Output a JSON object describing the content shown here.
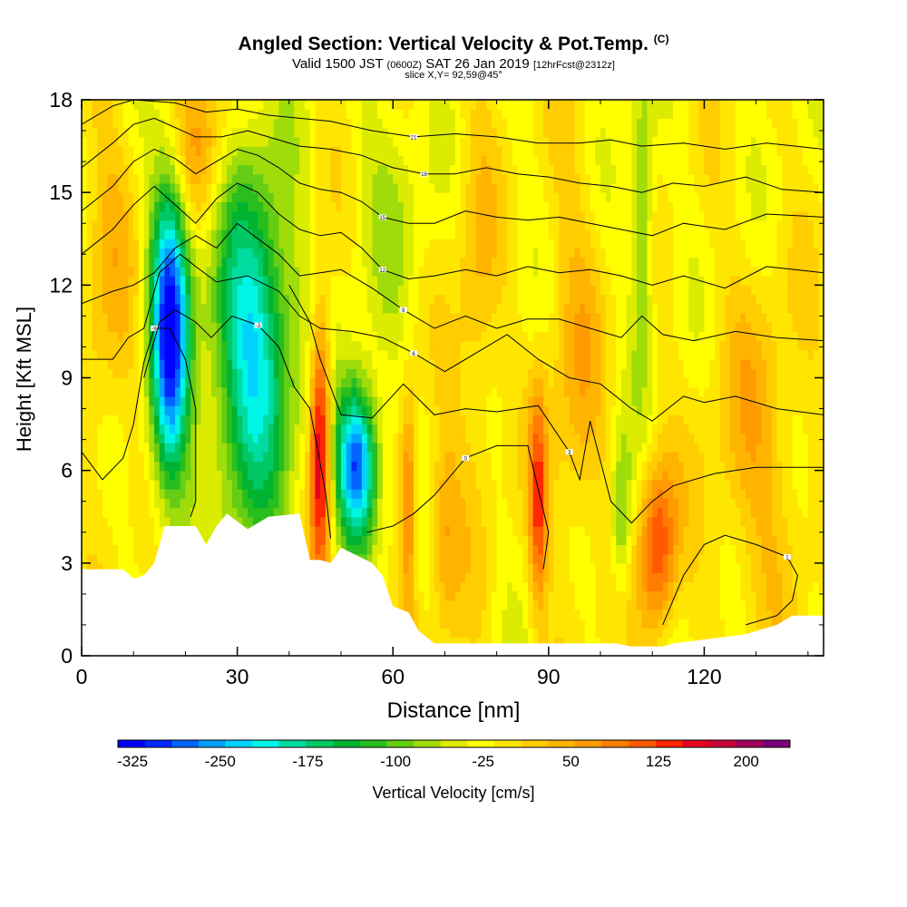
{
  "title": {
    "main": "Angled Section: Vertical Velocity & Pot.Temp.",
    "mark": "(C)",
    "valid_prefix": "Valid 1500 JST",
    "valid_utc": "(0600Z)",
    "valid_date": "SAT 26 Jan 2019",
    "forecast": "[12hrFcst@2312z]",
    "slice": "slice X,Y= 92,59@45°"
  },
  "chart_data": {
    "type": "heatmap",
    "xlabel": "Distance [nm]",
    "ylabel": "Height [Kft MSL]",
    "xlim": [
      0,
      143
    ],
    "ylim": [
      0,
      18
    ],
    "x_ticks": [
      0,
      30,
      60,
      90,
      120
    ],
    "y_ticks": [
      0,
      3,
      6,
      9,
      12,
      15,
      18
    ],
    "colorbar": {
      "label": "Vertical Velocity [cm/s]",
      "min": -337.5,
      "max": 237.5,
      "step": 25,
      "tick_values": [
        -325,
        -250,
        -175,
        -100,
        -25,
        50,
        125,
        200
      ],
      "colors": [
        "#0000ff",
        "#0028ff",
        "#0064ff",
        "#00a0ff",
        "#00d2ff",
        "#00f5e6",
        "#00dca0",
        "#00c864",
        "#00b432",
        "#28be1e",
        "#64cd14",
        "#a0dc0a",
        "#dcec00",
        "#ffff00",
        "#ffe600",
        "#ffcd00",
        "#ffb400",
        "#ff9b00",
        "#ff7d00",
        "#ff5a00",
        "#ff2800",
        "#e6001e",
        "#c8003c",
        "#a0005a",
        "#780078"
      ]
    },
    "terrain_kft": [
      [
        0,
        2.8
      ],
      [
        8,
        2.8
      ],
      [
        10,
        2.5
      ],
      [
        12,
        2.6
      ],
      [
        14,
        3.0
      ],
      [
        16,
        4.2
      ],
      [
        22,
        4.2
      ],
      [
        24,
        3.6
      ],
      [
        26,
        4.2
      ],
      [
        28,
        4.6
      ],
      [
        32,
        4.1
      ],
      [
        36,
        4.5
      ],
      [
        42,
        4.6
      ],
      [
        44,
        3.1
      ],
      [
        46,
        3.1
      ],
      [
        48,
        3.0
      ],
      [
        50,
        3.5
      ],
      [
        56,
        3.0
      ],
      [
        58,
        2.6
      ],
      [
        60,
        1.6
      ],
      [
        63,
        1.4
      ],
      [
        65,
        0.8
      ],
      [
        68,
        0.4
      ],
      [
        95,
        0.4
      ],
      [
        103,
        0.4
      ],
      [
        106,
        0.3
      ],
      [
        112,
        0.3
      ],
      [
        114,
        0.4
      ],
      [
        128,
        0.7
      ],
      [
        134,
        1.0
      ],
      [
        137,
        1.3
      ],
      [
        143,
        1.3
      ]
    ],
    "updrafts": [
      {
        "x": 17,
        "z": 10.5,
        "w": -330,
        "sx": 2.6,
        "sz": 3.5
      },
      {
        "x": 33,
        "z": 10.0,
        "w": -225,
        "sx": 5.5,
        "sz": 4.0
      },
      {
        "x": 53,
        "z": 6.2,
        "w": -310,
        "sx": 2.8,
        "sz": 1.8
      },
      {
        "x": 46,
        "z": 7.0,
        "w": 220,
        "sx": 1.4,
        "sz": 3.0
      },
      {
        "x": 63,
        "z": 5.0,
        "w": 130,
        "sx": 1.2,
        "sz": 2.5
      },
      {
        "x": 88,
        "z": 5.0,
        "w": 140,
        "sx": 1.2,
        "sz": 2.5
      },
      {
        "x": 111,
        "z": 3.5,
        "w": 155,
        "sx": 2.5,
        "sz": 2.0
      },
      {
        "x": 108,
        "z": 14.0,
        "w": -90,
        "sx": 1.6,
        "sz": 3.5
      },
      {
        "x": 60,
        "z": 14.5,
        "w": -40,
        "sx": 5.0,
        "sz": 3.5
      },
      {
        "x": 104,
        "z": 4.5,
        "w": -90,
        "sx": 1.4,
        "sz": 1.8
      },
      {
        "x": 95,
        "z": 9.0,
        "w": 60,
        "sx": 4.0,
        "sz": 5.0
      },
      {
        "x": 76,
        "z": 11.0,
        "w": 55,
        "sx": 3.0,
        "sz": 5.0
      },
      {
        "x": 130,
        "z": 6.5,
        "w": 60,
        "sx": 7.0,
        "sz": 4.0
      },
      {
        "x": 5,
        "z": 12.0,
        "w": 50,
        "sx": 4.0,
        "sz": 5.0
      },
      {
        "x": 23,
        "z": 16.5,
        "w": 80,
        "sx": 4.0,
        "sz": 2.0
      },
      {
        "x": 70,
        "z": 4.0,
        "w": 70,
        "sx": 2.0,
        "sz": 2.5
      }
    ],
    "isentropes": [
      {
        "label": "-9",
        "pts": [
          [
            0,
            6.6
          ],
          [
            4,
            5.7
          ],
          [
            8,
            6.4
          ],
          [
            10,
            7.5
          ],
          [
            12,
            9.5
          ],
          [
            14,
            10.6
          ],
          [
            17,
            10.6
          ],
          [
            20,
            9.6
          ],
          [
            22,
            8.0
          ],
          [
            22,
            5.0
          ],
          [
            21,
            4.5
          ]
        ]
      },
      {
        "label": "-3",
        "pts": [
          [
            12,
            9.0
          ],
          [
            15,
            10.8
          ],
          [
            18,
            11.2
          ],
          [
            22,
            10.8
          ],
          [
            25,
            10.3
          ],
          [
            29,
            11.0
          ],
          [
            34,
            10.7
          ],
          [
            38,
            10.0
          ],
          [
            41,
            8.7
          ],
          [
            44,
            8.0
          ],
          [
            47,
            5.3
          ],
          [
            48,
            3.8
          ]
        ]
      },
      {
        "label": "0",
        "pts": [
          [
            55,
            4.0
          ],
          [
            60,
            4.2
          ],
          [
            64,
            4.6
          ],
          [
            68,
            5.2
          ],
          [
            74,
            6.4
          ],
          [
            80,
            6.8
          ],
          [
            86,
            6.8
          ],
          [
            90,
            4.0
          ],
          [
            89,
            2.8
          ]
        ]
      },
      {
        "label": "3",
        "pts": [
          [
            40,
            12.0
          ],
          [
            44,
            10.8
          ],
          [
            46,
            9.6
          ],
          [
            50,
            7.8
          ],
          [
            56,
            7.7
          ],
          [
            62,
            8.8
          ],
          [
            68,
            7.8
          ],
          [
            74,
            8.0
          ],
          [
            80,
            7.9
          ],
          [
            88,
            8.1
          ],
          [
            94,
            6.6
          ],
          [
            96,
            5.7
          ],
          [
            98,
            7.6
          ],
          [
            102,
            5.0
          ],
          [
            106,
            4.3
          ],
          [
            110,
            5.0
          ],
          [
            114,
            5.5
          ],
          [
            122,
            5.9
          ],
          [
            130,
            6.1
          ],
          [
            143,
            6.1
          ]
        ]
      },
      {
        "label": "6",
        "pts": [
          [
            0,
            9.6
          ],
          [
            6,
            9.6
          ],
          [
            9,
            10.3
          ],
          [
            12,
            10.6
          ],
          [
            15,
            12.4
          ],
          [
            19,
            13.0
          ],
          [
            22,
            12.6
          ],
          [
            26,
            12.1
          ],
          [
            32,
            12.3
          ],
          [
            38,
            11.8
          ],
          [
            42,
            11.0
          ],
          [
            46,
            10.6
          ],
          [
            52,
            10.5
          ],
          [
            58,
            10.3
          ],
          [
            64,
            9.8
          ],
          [
            70,
            9.2
          ],
          [
            76,
            9.8
          ],
          [
            82,
            10.4
          ],
          [
            88,
            9.6
          ],
          [
            94,
            9.0
          ],
          [
            100,
            8.8
          ],
          [
            106,
            8.0
          ],
          [
            110,
            7.6
          ],
          [
            116,
            8.4
          ],
          [
            120,
            8.2
          ],
          [
            126,
            8.4
          ],
          [
            134,
            8.0
          ],
          [
            143,
            7.8
          ]
        ]
      },
      {
        "label": "9",
        "pts": [
          [
            0,
            11.4
          ],
          [
            6,
            11.8
          ],
          [
            10,
            12.0
          ],
          [
            14,
            12.4
          ],
          [
            18,
            13.2
          ],
          [
            22,
            13.6
          ],
          [
            26,
            13.2
          ],
          [
            30,
            14.0
          ],
          [
            34,
            13.5
          ],
          [
            38,
            13.0
          ],
          [
            42,
            12.3
          ],
          [
            46,
            12.4
          ],
          [
            50,
            12.5
          ],
          [
            56,
            11.9
          ],
          [
            62,
            11.2
          ],
          [
            68,
            10.6
          ],
          [
            74,
            11.0
          ],
          [
            80,
            10.6
          ],
          [
            86,
            10.9
          ],
          [
            92,
            10.9
          ],
          [
            98,
            10.6
          ],
          [
            104,
            10.3
          ],
          [
            108,
            11.0
          ],
          [
            112,
            10.4
          ],
          [
            118,
            10.2
          ],
          [
            126,
            10.5
          ],
          [
            134,
            10.3
          ],
          [
            143,
            10.2
          ]
        ]
      },
      {
        "label": "12",
        "pts": [
          [
            0,
            13.0
          ],
          [
            6,
            13.8
          ],
          [
            10,
            14.6
          ],
          [
            14,
            15.2
          ],
          [
            18,
            14.6
          ],
          [
            22,
            14.0
          ],
          [
            26,
            14.8
          ],
          [
            30,
            15.3
          ],
          [
            34,
            15.0
          ],
          [
            38,
            14.3
          ],
          [
            42,
            13.8
          ],
          [
            46,
            13.6
          ],
          [
            50,
            13.7
          ],
          [
            54,
            13.2
          ],
          [
            58,
            12.5
          ],
          [
            63,
            12.2
          ],
          [
            68,
            12.3
          ],
          [
            74,
            12.5
          ],
          [
            80,
            12.3
          ],
          [
            86,
            12.6
          ],
          [
            92,
            12.4
          ],
          [
            98,
            12.5
          ],
          [
            104,
            12.3
          ],
          [
            110,
            12.0
          ],
          [
            116,
            12.3
          ],
          [
            124,
            11.9
          ],
          [
            132,
            12.6
          ],
          [
            143,
            12.4
          ]
        ]
      },
      {
        "label": "15",
        "pts": [
          [
            0,
            14.4
          ],
          [
            6,
            15.2
          ],
          [
            10,
            16.0
          ],
          [
            14,
            16.4
          ],
          [
            18,
            16.1
          ],
          [
            22,
            15.6
          ],
          [
            26,
            16.0
          ],
          [
            30,
            16.4
          ],
          [
            34,
            16.2
          ],
          [
            38,
            15.8
          ],
          [
            42,
            15.3
          ],
          [
            46,
            15.1
          ],
          [
            50,
            15.0
          ],
          [
            54,
            14.7
          ],
          [
            58,
            14.2
          ],
          [
            63,
            14.0
          ],
          [
            68,
            14.0
          ],
          [
            74,
            14.4
          ],
          [
            80,
            14.2
          ],
          [
            86,
            14.1
          ],
          [
            92,
            14.2
          ],
          [
            98,
            14.0
          ],
          [
            104,
            13.8
          ],
          [
            110,
            13.6
          ],
          [
            116,
            14.0
          ],
          [
            124,
            13.8
          ],
          [
            132,
            14.3
          ],
          [
            143,
            14.2
          ]
        ]
      },
      {
        "label": "18",
        "pts": [
          [
            0,
            15.8
          ],
          [
            6,
            16.6
          ],
          [
            10,
            17.2
          ],
          [
            14,
            17.4
          ],
          [
            18,
            17.1
          ],
          [
            22,
            16.8
          ],
          [
            27,
            16.8
          ],
          [
            32,
            17.0
          ],
          [
            36,
            16.8
          ],
          [
            42,
            16.5
          ],
          [
            48,
            16.4
          ],
          [
            54,
            16.2
          ],
          [
            60,
            15.8
          ],
          [
            66,
            15.6
          ],
          [
            72,
            15.6
          ],
          [
            78,
            15.8
          ],
          [
            84,
            15.6
          ],
          [
            90,
            15.5
          ],
          [
            96,
            15.3
          ],
          [
            102,
            15.2
          ],
          [
            108,
            15.0
          ],
          [
            114,
            15.3
          ],
          [
            120,
            15.2
          ],
          [
            128,
            15.5
          ],
          [
            135,
            15.1
          ],
          [
            143,
            15.0
          ]
        ]
      },
      {
        "label": "21",
        "pts": [
          [
            0,
            17.2
          ],
          [
            6,
            17.8
          ],
          [
            10,
            18.0
          ],
          [
            18,
            17.9
          ],
          [
            24,
            17.6
          ],
          [
            30,
            17.7
          ],
          [
            36,
            17.5
          ],
          [
            42,
            17.4
          ],
          [
            48,
            17.3
          ],
          [
            56,
            17.0
          ],
          [
            64,
            16.8
          ],
          [
            72,
            16.9
          ],
          [
            80,
            16.8
          ],
          [
            88,
            16.6
          ],
          [
            96,
            16.6
          ],
          [
            102,
            16.7
          ],
          [
            108,
            16.5
          ],
          [
            116,
            16.6
          ],
          [
            124,
            16.4
          ],
          [
            132,
            16.6
          ],
          [
            143,
            16.4
          ]
        ]
      },
      {
        "label": "1",
        "pts": [
          [
            112,
            1.0
          ],
          [
            116,
            2.6
          ],
          [
            120,
            3.6
          ],
          [
            124,
            3.9
          ],
          [
            130,
            3.6
          ],
          [
            136,
            3.2
          ],
          [
            138,
            2.6
          ],
          [
            137,
            1.8
          ],
          [
            134,
            1.3
          ],
          [
            128,
            1.0
          ]
        ]
      }
    ]
  }
}
